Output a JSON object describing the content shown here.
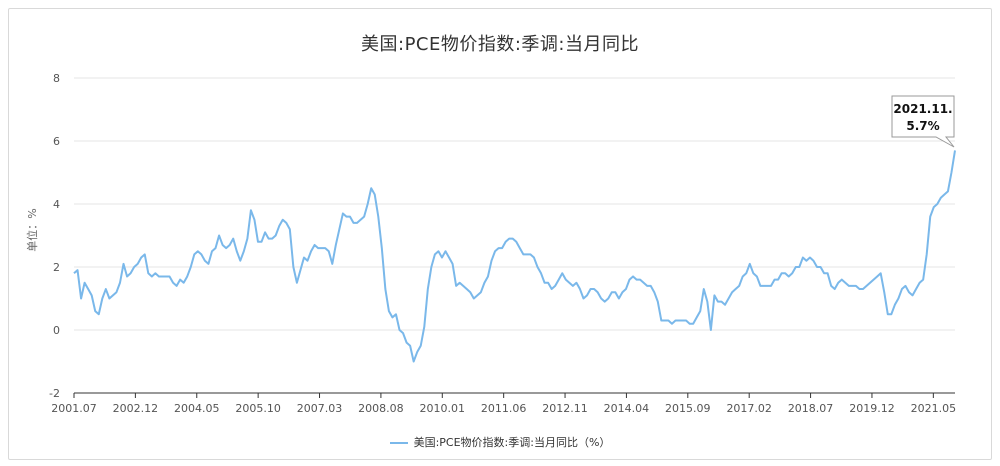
{
  "chart_data": {
    "type": "line",
    "title": "美国:PCE物价指数:季调:当月同比",
    "ylabel": "单位：%",
    "ylim": [
      -2,
      8
    ],
    "yticks": [
      -2,
      0,
      2,
      4,
      6,
      8
    ],
    "xticks": [
      "2001.07",
      "2002.12",
      "2004.05",
      "2005.10",
      "2007.03",
      "2008.08",
      "2010.01",
      "2011.06",
      "2012.11",
      "2014.04",
      "2015.09",
      "2017.02",
      "2018.07",
      "2019.12",
      "2021.05"
    ],
    "grid": true,
    "legend_position": "bottom",
    "series": [
      {
        "name": "美国:PCE物价指数:季调:当月同比（%）",
        "color": "#7ab8ea",
        "start": "2001.07",
        "end": "2021.11",
        "values": [
          1.8,
          1.9,
          1.0,
          1.5,
          1.3,
          1.1,
          0.6,
          0.5,
          1.0,
          1.3,
          1.0,
          1.1,
          1.2,
          1.5,
          2.1,
          1.7,
          1.8,
          2.0,
          2.1,
          2.3,
          2.4,
          1.8,
          1.7,
          1.8,
          1.7,
          1.7,
          1.7,
          1.7,
          1.5,
          1.4,
          1.6,
          1.5,
          1.7,
          2.0,
          2.4,
          2.5,
          2.4,
          2.2,
          2.1,
          2.5,
          2.6,
          3.0,
          2.7,
          2.6,
          2.7,
          2.9,
          2.5,
          2.2,
          2.5,
          2.9,
          3.8,
          3.5,
          2.8,
          2.8,
          3.1,
          2.9,
          2.9,
          3.0,
          3.3,
          3.5,
          3.4,
          3.2,
          2.0,
          1.5,
          1.9,
          2.3,
          2.2,
          2.5,
          2.7,
          2.6,
          2.6,
          2.6,
          2.5,
          2.1,
          2.7,
          3.2,
          3.7,
          3.6,
          3.6,
          3.4,
          3.4,
          3.5,
          3.6,
          4.0,
          4.5,
          4.3,
          3.6,
          2.6,
          1.3,
          0.6,
          0.4,
          0.5,
          0.0,
          -0.1,
          -0.4,
          -0.5,
          -1.0,
          -0.7,
          -0.5,
          0.1,
          1.3,
          2.0,
          2.4,
          2.5,
          2.3,
          2.5,
          2.3,
          2.1,
          1.4,
          1.5,
          1.4,
          1.3,
          1.2,
          1.0,
          1.1,
          1.2,
          1.5,
          1.7,
          2.2,
          2.5,
          2.6,
          2.6,
          2.8,
          2.9,
          2.9,
          2.8,
          2.6,
          2.4,
          2.4,
          2.4,
          2.3,
          2.0,
          1.8,
          1.5,
          1.5,
          1.3,
          1.4,
          1.6,
          1.8,
          1.6,
          1.5,
          1.4,
          1.5,
          1.3,
          1.0,
          1.1,
          1.3,
          1.3,
          1.2,
          1.0,
          0.9,
          1.0,
          1.2,
          1.2,
          1.0,
          1.2,
          1.3,
          1.6,
          1.7,
          1.6,
          1.6,
          1.5,
          1.4,
          1.4,
          1.2,
          0.9,
          0.3,
          0.3,
          0.3,
          0.2,
          0.3,
          0.3,
          0.3,
          0.3,
          0.2,
          0.2,
          0.4,
          0.6,
          1.3,
          0.9,
          0.0,
          1.1,
          0.9,
          0.9,
          0.8,
          1.0,
          1.2,
          1.3,
          1.4,
          1.7,
          1.8,
          2.1,
          1.8,
          1.7,
          1.4,
          1.4,
          1.4,
          1.4,
          1.6,
          1.6,
          1.8,
          1.8,
          1.7,
          1.8,
          2.0,
          2.0,
          2.3,
          2.2,
          2.3,
          2.2,
          2.0,
          2.0,
          1.8,
          1.8,
          1.4,
          1.3,
          1.5,
          1.6,
          1.5,
          1.4,
          1.4,
          1.4,
          1.3,
          1.3,
          1.4,
          1.5,
          1.6,
          1.7,
          1.8,
          1.2,
          0.5,
          0.5,
          0.8,
          1.0,
          1.3,
          1.4,
          1.2,
          1.1,
          1.3,
          1.5,
          1.6,
          2.4,
          3.6,
          3.9,
          4.0,
          4.2,
          4.3,
          4.4,
          5.0,
          5.7
        ]
      }
    ],
    "annotation": {
      "label_line1": "2021.11.",
      "label_line2": "5.7%"
    }
  }
}
